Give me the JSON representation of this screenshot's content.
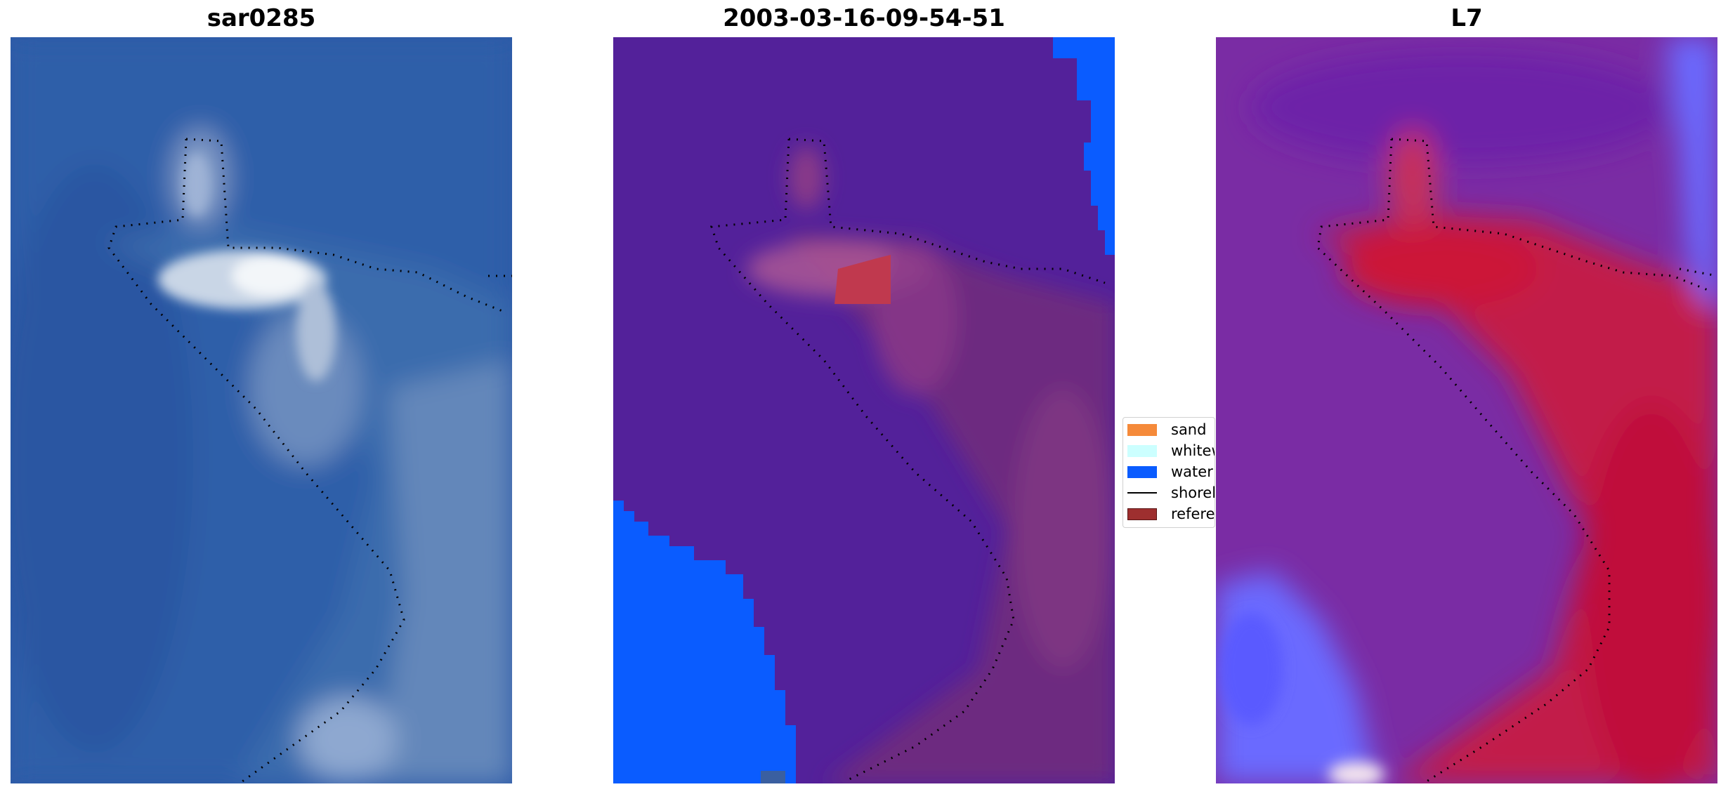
{
  "panels": [
    {
      "title": "sar0285"
    },
    {
      "title": "2003-03-16-09-54-51"
    },
    {
      "title": "L7"
    }
  ],
  "legend": {
    "items": [
      {
        "label": "sand",
        "color": "#f58a3a",
        "kind": "patch"
      },
      {
        "label": "whitewater",
        "color": "#ccffff",
        "kind": "patch"
      },
      {
        "label": "water",
        "color": "#0a5cff",
        "kind": "patch"
      },
      {
        "label": "shoreline",
        "color": "#000000",
        "kind": "line"
      },
      {
        "label": "reference shoreline",
        "color": "#9e2f2f",
        "kind": "patch"
      }
    ]
  },
  "colors": {
    "rgb_water": "#2d5aa8",
    "class_background": "#53219a",
    "class_water": "#0a5cff",
    "index_purple": "#7a2ca4",
    "index_red": "#c0153c",
    "index_blue": "#6a6aff"
  }
}
